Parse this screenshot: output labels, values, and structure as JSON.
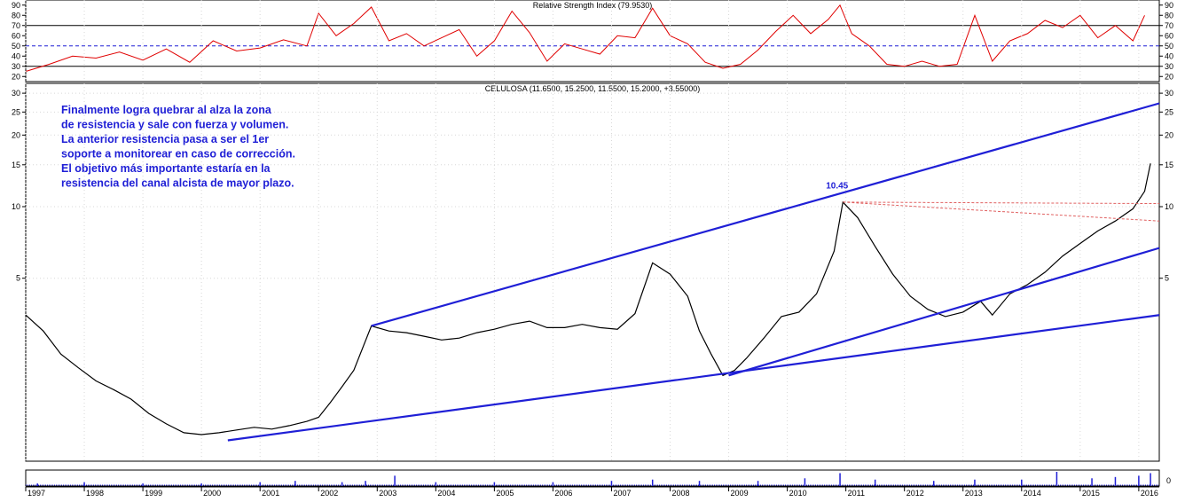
{
  "chart_data": [
    {
      "type": "line",
      "panel": "rsi",
      "title": "Relative Strength Index (79.9530)",
      "y_ticks": [
        20,
        30,
        40,
        50,
        60,
        70,
        80,
        90
      ],
      "ylim": [
        15,
        95
      ],
      "levels": [
        30,
        50,
        70
      ],
      "series": [
        {
          "color": "#e00000",
          "x": [
            1997.0,
            1997.4,
            1997.8,
            1998.2,
            1998.6,
            1999.0,
            1999.4,
            1999.8,
            2000.2,
            2000.6,
            2001.0,
            2001.4,
            2001.8,
            2002.0,
            2002.3,
            2002.6,
            2002.9,
            2003.2,
            2003.5,
            2003.8,
            2004.1,
            2004.4,
            2004.7,
            2005.0,
            2005.3,
            2005.6,
            2005.9,
            2006.2,
            2006.5,
            2006.8,
            2007.1,
            2007.4,
            2007.7,
            2008.0,
            2008.3,
            2008.6,
            2008.9,
            2009.2,
            2009.5,
            2009.8,
            2010.1,
            2010.4,
            2010.7,
            2010.9,
            2011.1,
            2011.4,
            2011.7,
            2012.0,
            2012.3,
            2012.6,
            2012.9,
            2013.2,
            2013.5,
            2013.8,
            2014.1,
            2014.4,
            2014.7,
            2015.0,
            2015.3,
            2015.6,
            2015.9,
            2016.1
          ],
          "values": [
            25,
            32,
            40,
            38,
            44,
            36,
            47,
            34,
            55,
            45,
            48,
            56,
            50,
            82,
            60,
            72,
            88,
            55,
            62,
            50,
            58,
            66,
            40,
            55,
            84,
            63,
            35,
            52,
            47,
            42,
            60,
            58,
            87,
            60,
            52,
            34,
            28,
            32,
            46,
            64,
            80,
            62,
            76,
            90,
            62,
            50,
            32,
            30,
            35,
            30,
            32,
            80,
            35,
            55,
            62,
            75,
            68,
            80,
            58,
            70,
            55,
            79.95
          ]
        }
      ]
    },
    {
      "type": "line",
      "panel": "price",
      "title": "CELULOSA (11.6500, 15.2500, 11.5500, 15.2000, +3.55000)",
      "scale": "log",
      "y_ticks": [
        5,
        10,
        15,
        20,
        25,
        30
      ],
      "ylim": [
        0.85,
        33
      ],
      "x_ticks": [
        "1997",
        "1998",
        "1999",
        "2000",
        "2001",
        "2002",
        "2003",
        "2004",
        "2005",
        "2006",
        "2007",
        "2008",
        "2009",
        "2010",
        "2011",
        "2012",
        "2013",
        "2014",
        "2015",
        "2016"
      ],
      "xlim": [
        1997.0,
        2016.35
      ],
      "series": [
        {
          "color": "#000000",
          "x": [
            1997.0,
            1997.3,
            1997.6,
            1997.9,
            1998.2,
            1998.5,
            1998.8,
            1999.1,
            1999.4,
            1999.7,
            2000.0,
            2000.3,
            2000.6,
            2000.9,
            2001.2,
            2001.5,
            2001.8,
            2002.0,
            2002.2,
            2002.4,
            2002.6,
            2002.9,
            2003.2,
            2003.5,
            2003.8,
            2004.1,
            2004.4,
            2004.7,
            2005.0,
            2005.3,
            2005.6,
            2005.9,
            2006.2,
            2006.5,
            2006.8,
            2007.1,
            2007.4,
            2007.7,
            2008.0,
            2008.3,
            2008.5,
            2008.7,
            2008.9,
            2009.1,
            2009.3,
            2009.6,
            2009.9,
            2010.2,
            2010.5,
            2010.8,
            2010.95,
            2011.2,
            2011.5,
            2011.8,
            2012.1,
            2012.4,
            2012.7,
            2013.0,
            2013.3,
            2013.5,
            2013.8,
            2014.1,
            2014.4,
            2014.7,
            2015.0,
            2015.3,
            2015.6,
            2015.9,
            2016.1,
            2016.2
          ],
          "values": [
            3.5,
            3.0,
            2.4,
            2.1,
            1.85,
            1.7,
            1.55,
            1.35,
            1.22,
            1.12,
            1.1,
            1.12,
            1.15,
            1.18,
            1.16,
            1.2,
            1.25,
            1.3,
            1.5,
            1.75,
            2.05,
            3.15,
            3.0,
            2.95,
            2.85,
            2.75,
            2.8,
            2.95,
            3.05,
            3.2,
            3.3,
            3.1,
            3.1,
            3.2,
            3.1,
            3.05,
            3.55,
            5.8,
            5.2,
            4.2,
            3.0,
            2.4,
            1.95,
            2.05,
            2.3,
            2.8,
            3.45,
            3.6,
            4.3,
            6.5,
            10.45,
            9.0,
            6.8,
            5.2,
            4.2,
            3.7,
            3.45,
            3.6,
            4.0,
            3.5,
            4.3,
            4.7,
            5.3,
            6.2,
            7.0,
            7.9,
            8.7,
            9.8,
            11.6,
            15.2
          ]
        }
      ],
      "trendlines": [
        {
          "color": "#1f1fd6",
          "x": [
            2002.9,
            2016.35
          ],
          "values": [
            3.15,
            27.2
          ]
        },
        {
          "color": "#1f1fd6",
          "x": [
            2000.45,
            2016.35
          ],
          "values": [
            1.04,
            3.5
          ]
        },
        {
          "color": "#1f1fd6",
          "x": [
            2009.0,
            2016.35
          ],
          "values": [
            1.95,
            6.7
          ]
        },
        {
          "color": "#e06060",
          "dash": true,
          "x": [
            2010.95,
            2016.35
          ],
          "values": [
            10.45,
            8.7
          ]
        },
        {
          "color": "#e06060",
          "dash": true,
          "x": [
            2010.95,
            2016.35
          ],
          "values": [
            10.45,
            10.3
          ]
        }
      ],
      "annotations": [
        {
          "text": "10.45",
          "x": 2010.85,
          "y": 11.9
        }
      ],
      "commentary": [
        "Finalmente logra quebrar al alza la zona",
        "de resistencia y sale con fuerza y volumen.",
        "La anterior resistencia pasa a ser el 1er",
        "soporte a monitorear en caso de corrección.",
        "El objetivo más importante estaría en la",
        "resistencia del canal alcista de mayor plazo."
      ]
    },
    {
      "type": "bar",
      "panel": "volume",
      "y_ticks": [
        "0"
      ],
      "x": [
        1997.2,
        1998.0,
        1999.0,
        2000.0,
        2001.0,
        2001.6,
        2002.4,
        2002.8,
        2003.3,
        2004.0,
        2005.0,
        2006.0,
        2007.0,
        2007.7,
        2008.5,
        2009.5,
        2010.3,
        2010.9,
        2011.5,
        2012.5,
        2013.2,
        2014.0,
        2014.6,
        2015.2,
        2015.6,
        2016.0,
        2016.2
      ],
      "values": [
        2,
        3,
        2,
        2,
        3,
        4,
        3,
        4,
        8,
        3,
        3,
        3,
        4,
        5,
        4,
        4,
        6,
        10,
        5,
        4,
        5,
        5,
        11,
        6,
        7,
        8,
        10
      ]
    }
  ]
}
